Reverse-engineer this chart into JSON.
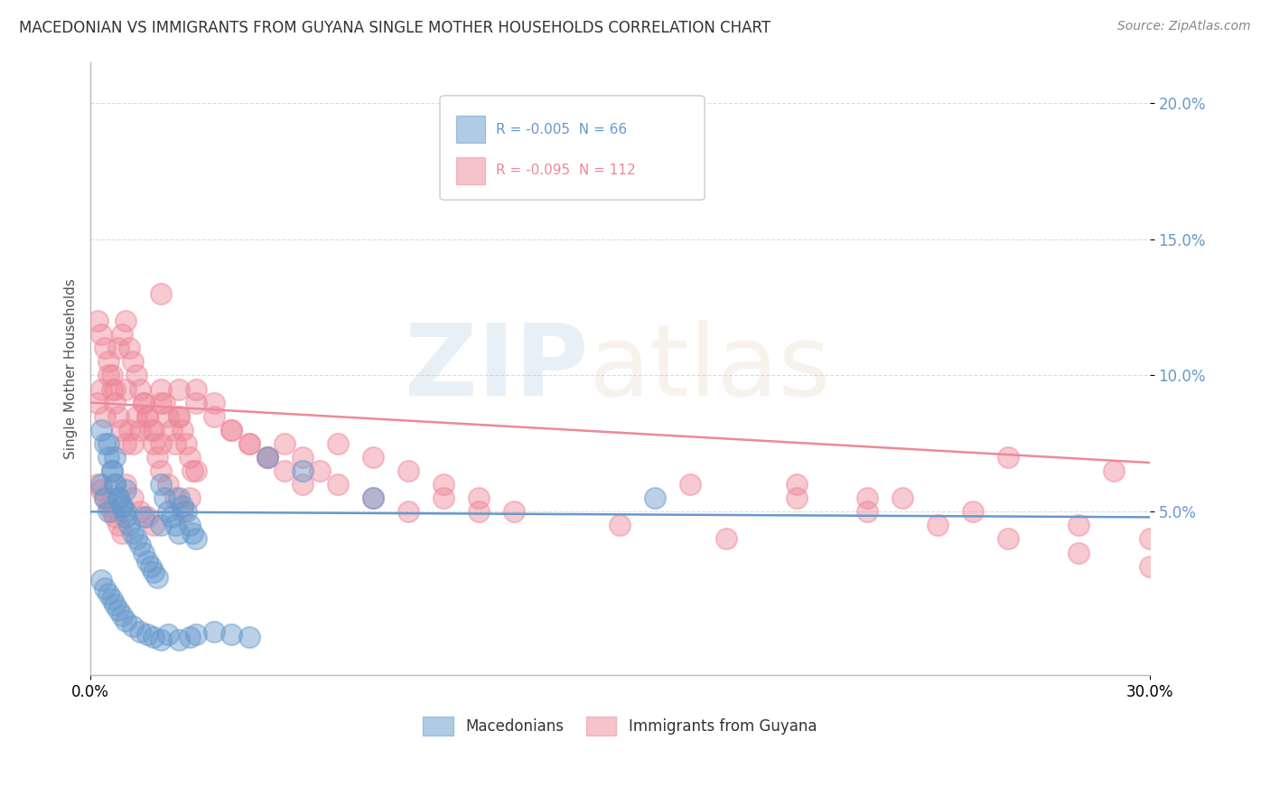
{
  "title": "MACEDONIAN VS IMMIGRANTS FROM GUYANA SINGLE MOTHER HOUSEHOLDS CORRELATION CHART",
  "source": "Source: ZipAtlas.com",
  "ylabel": "Single Mother Households",
  "xlim": [
    0.0,
    0.3
  ],
  "ylim": [
    -0.01,
    0.215
  ],
  "xtick_pos": [
    0.0,
    0.3
  ],
  "xtick_labels": [
    "0.0%",
    "30.0%"
  ],
  "yticks": [
    0.05,
    0.1,
    0.15,
    0.2
  ],
  "ytick_labels": [
    "5.0%",
    "10.0%",
    "15.0%",
    "20.0%"
  ],
  "blue_color": "#6699CC",
  "pink_color": "#EE8899",
  "blue_label": "Macedonians",
  "pink_label": "Immigrants from Guyana",
  "R_blue": -0.005,
  "N_blue": 66,
  "R_pink": -0.095,
  "N_pink": 112,
  "background_color": "#FFFFFF",
  "grid_color": "#DDDDDD",
  "title_color": "#333333",
  "tick_color": "#6699CC",
  "blue_scatter_x": [
    0.003,
    0.004,
    0.005,
    0.005,
    0.006,
    0.007,
    0.007,
    0.008,
    0.009,
    0.01,
    0.01,
    0.011,
    0.012,
    0.013,
    0.014,
    0.015,
    0.016,
    0.017,
    0.018,
    0.019,
    0.02,
    0.021,
    0.022,
    0.023,
    0.024,
    0.025,
    0.026,
    0.027,
    0.028,
    0.029,
    0.003,
    0.004,
    0.005,
    0.006,
    0.007,
    0.008,
    0.009,
    0.01,
    0.012,
    0.014,
    0.016,
    0.018,
    0.02,
    0.022,
    0.025,
    0.028,
    0.03,
    0.035,
    0.04,
    0.045,
    0.003,
    0.004,
    0.005,
    0.006,
    0.007,
    0.008,
    0.009,
    0.01,
    0.015,
    0.02,
    0.025,
    0.03,
    0.05,
    0.06,
    0.08,
    0.16
  ],
  "blue_scatter_y": [
    0.06,
    0.055,
    0.05,
    0.075,
    0.065,
    0.07,
    0.06,
    0.055,
    0.052,
    0.058,
    0.048,
    0.045,
    0.042,
    0.04,
    0.038,
    0.035,
    0.032,
    0.03,
    0.028,
    0.026,
    0.06,
    0.055,
    0.05,
    0.048,
    0.045,
    0.055,
    0.052,
    0.05,
    0.045,
    0.042,
    0.025,
    0.022,
    0.02,
    0.018,
    0.016,
    0.014,
    0.012,
    0.01,
    0.008,
    0.006,
    0.005,
    0.004,
    0.003,
    0.005,
    0.003,
    0.004,
    0.005,
    0.006,
    0.005,
    0.004,
    0.08,
    0.075,
    0.07,
    0.065,
    0.06,
    0.055,
    0.052,
    0.05,
    0.048,
    0.045,
    0.042,
    0.04,
    0.07,
    0.065,
    0.055,
    0.055
  ],
  "pink_scatter_x": [
    0.002,
    0.003,
    0.004,
    0.005,
    0.006,
    0.007,
    0.008,
    0.009,
    0.01,
    0.01,
    0.011,
    0.012,
    0.013,
    0.014,
    0.015,
    0.016,
    0.017,
    0.018,
    0.019,
    0.02,
    0.02,
    0.021,
    0.022,
    0.023,
    0.024,
    0.025,
    0.026,
    0.027,
    0.028,
    0.029,
    0.002,
    0.003,
    0.004,
    0.005,
    0.006,
    0.007,
    0.008,
    0.009,
    0.01,
    0.012,
    0.014,
    0.016,
    0.018,
    0.02,
    0.022,
    0.024,
    0.026,
    0.028,
    0.03,
    0.002,
    0.003,
    0.004,
    0.005,
    0.006,
    0.007,
    0.008,
    0.009,
    0.01,
    0.011,
    0.012,
    0.013,
    0.014,
    0.015,
    0.016,
    0.018,
    0.02,
    0.025,
    0.03,
    0.035,
    0.04,
    0.045,
    0.05,
    0.055,
    0.06,
    0.07,
    0.08,
    0.09,
    0.1,
    0.11,
    0.12,
    0.02,
    0.025,
    0.03,
    0.035,
    0.04,
    0.045,
    0.05,
    0.055,
    0.06,
    0.065,
    0.07,
    0.08,
    0.09,
    0.1,
    0.11,
    0.15,
    0.18,
    0.2,
    0.22,
    0.24,
    0.26,
    0.28,
    0.3,
    0.2,
    0.22,
    0.25,
    0.28,
    0.3,
    0.17,
    0.23,
    0.26,
    0.29
  ],
  "pink_scatter_y": [
    0.09,
    0.095,
    0.085,
    0.1,
    0.095,
    0.09,
    0.085,
    0.08,
    0.075,
    0.095,
    0.08,
    0.075,
    0.085,
    0.08,
    0.09,
    0.085,
    0.08,
    0.075,
    0.07,
    0.075,
    0.095,
    0.09,
    0.085,
    0.08,
    0.075,
    0.085,
    0.08,
    0.075,
    0.07,
    0.065,
    0.06,
    0.058,
    0.055,
    0.052,
    0.05,
    0.048,
    0.045,
    0.042,
    0.06,
    0.055,
    0.05,
    0.048,
    0.045,
    0.065,
    0.06,
    0.055,
    0.05,
    0.055,
    0.065,
    0.12,
    0.115,
    0.11,
    0.105,
    0.1,
    0.095,
    0.11,
    0.115,
    0.12,
    0.11,
    0.105,
    0.1,
    0.095,
    0.09,
    0.085,
    0.08,
    0.09,
    0.085,
    0.095,
    0.09,
    0.08,
    0.075,
    0.07,
    0.065,
    0.06,
    0.075,
    0.07,
    0.065,
    0.06,
    0.055,
    0.05,
    0.13,
    0.095,
    0.09,
    0.085,
    0.08,
    0.075,
    0.07,
    0.075,
    0.07,
    0.065,
    0.06,
    0.055,
    0.05,
    0.055,
    0.05,
    0.045,
    0.04,
    0.055,
    0.05,
    0.045,
    0.04,
    0.035,
    0.03,
    0.06,
    0.055,
    0.05,
    0.045,
    0.04,
    0.06,
    0.055,
    0.07,
    0.065
  ],
  "blue_trend_x": [
    0.0,
    0.3
  ],
  "blue_trend_y": [
    0.05,
    0.048
  ],
  "pink_trend_x": [
    0.0,
    0.3
  ],
  "pink_trend_y": [
    0.09,
    0.068
  ]
}
